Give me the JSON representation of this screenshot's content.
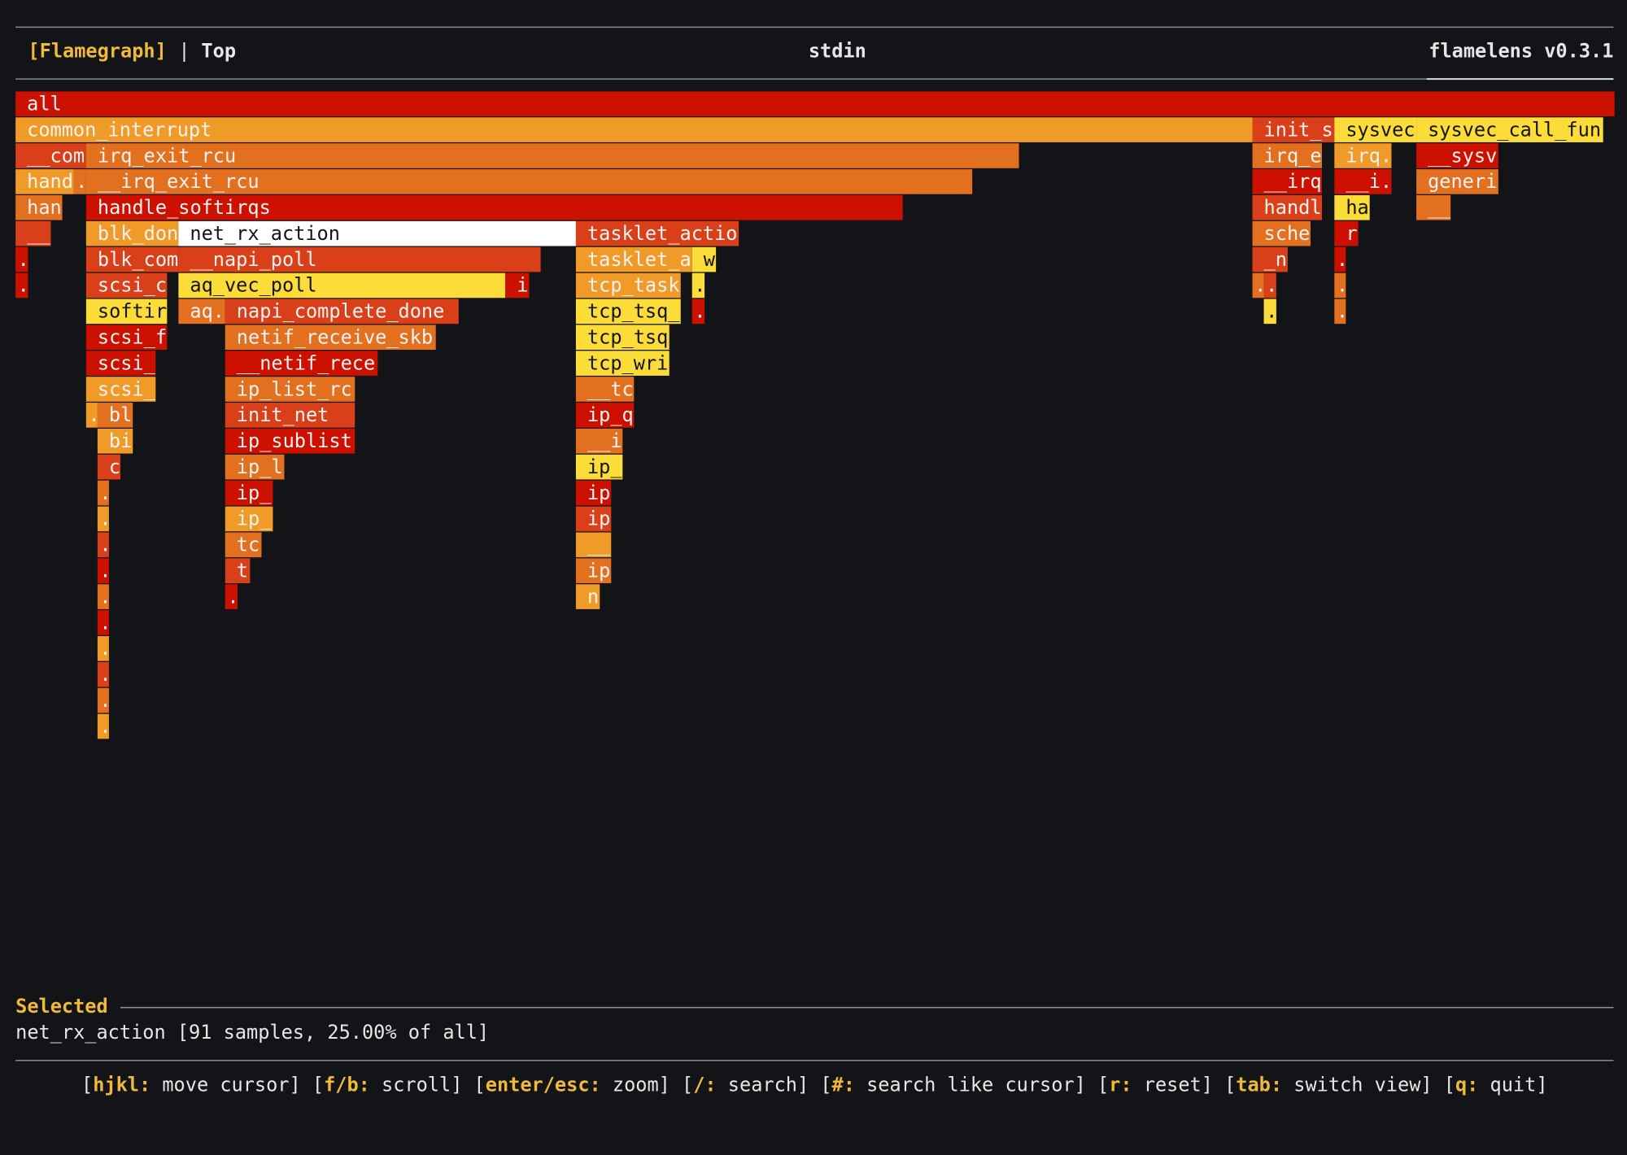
{
  "header": {
    "active_view": "[Flamegraph]",
    "separator": "|",
    "other_view": "Top",
    "source": "stdin",
    "app": "flamelens v0.3.1"
  },
  "flamegraph": {
    "frames": [
      {
        "label": "all"
      },
      {
        "label": "common_interrupt"
      },
      {
        "label": "init_s"
      },
      {
        "label": "sysvec"
      },
      {
        "label": "sysvec_call_fun"
      },
      {
        "label": "__com"
      },
      {
        "label": "irq_exit_rcu"
      },
      {
        "label": "irq_e"
      },
      {
        "label": "irq."
      },
      {
        "label": "__sysv"
      },
      {
        "label": "hand"
      },
      {
        "label": "."
      },
      {
        "label": "__irq_exit_rcu"
      },
      {
        "label": "__irq"
      },
      {
        "label": "__i."
      },
      {
        "label": "generi"
      },
      {
        "label": "han"
      },
      {
        "label": "handle_softirqs"
      },
      {
        "label": "handl"
      },
      {
        "label": "ha"
      },
      {
        "label": "__"
      },
      {
        "label": "__"
      },
      {
        "label": "blk_don"
      },
      {
        "label": "net_rx_action"
      },
      {
        "label": "tasklet_actio"
      },
      {
        "label": "sche"
      },
      {
        "label": "r"
      },
      {
        "label": "."
      },
      {
        "label": "blk_com"
      },
      {
        "label": "__napi_poll"
      },
      {
        "label": "tasklet_a"
      },
      {
        "label": "w"
      },
      {
        "label": "_n"
      },
      {
        "label": "."
      },
      {
        "label": "."
      },
      {
        "label": "scsi_c"
      },
      {
        "label": "aq_vec_poll"
      },
      {
        "label": "i"
      },
      {
        "label": "tcp_task"
      },
      {
        "label": "."
      },
      {
        "label": "."
      },
      {
        "label": "."
      },
      {
        "label": "."
      },
      {
        "label": "softir"
      },
      {
        "label": "aq."
      },
      {
        "label": "napi_complete_done"
      },
      {
        "label": "tcp_tsq_"
      },
      {
        "label": "."
      },
      {
        "label": "."
      },
      {
        "label": "."
      },
      {
        "label": "scsi_f"
      },
      {
        "label": "netif_receive_skb"
      },
      {
        "label": "tcp_tsq"
      },
      {
        "label": "scsi_"
      },
      {
        "label": "__netif_rece"
      },
      {
        "label": "tcp_wri"
      },
      {
        "label": "scsi_"
      },
      {
        "label": "ip_list_rc"
      },
      {
        "label": "__tc"
      },
      {
        "label": "."
      },
      {
        "label": "bl"
      },
      {
        "label": "init_net"
      },
      {
        "label": "ip_q"
      },
      {
        "label": "bi"
      },
      {
        "label": "ip_sublist"
      },
      {
        "label": "__i"
      },
      {
        "label": "c"
      },
      {
        "label": "ip_l"
      },
      {
        "label": "ip_"
      },
      {
        "label": "."
      },
      {
        "label": "ip_"
      },
      {
        "label": "ip"
      },
      {
        "label": "."
      },
      {
        "label": "ip_"
      },
      {
        "label": "ip"
      },
      {
        "label": "."
      },
      {
        "label": "tc"
      },
      {
        "label": "__"
      },
      {
        "label": "."
      },
      {
        "label": "t"
      },
      {
        "label": "ip"
      },
      {
        "label": "."
      },
      {
        "label": "."
      },
      {
        "label": "n"
      },
      {
        "label": "."
      },
      {
        "label": "."
      },
      {
        "label": "."
      },
      {
        "label": "."
      },
      {
        "label": "."
      }
    ]
  },
  "selected": {
    "title": "Selected",
    "text": "net_rx_action [91 samples, 25.00% of all]"
  },
  "footer": {
    "open": "[",
    "separator": ":",
    "close": "]",
    "items": [
      {
        "key": "hjkl",
        "action": "move cursor"
      },
      {
        "key": "f/b",
        "action": "scroll"
      },
      {
        "key": "enter/esc",
        "action": "zoom"
      },
      {
        "key": "/",
        "action": "search"
      },
      {
        "key": "#",
        "action": "search like cursor"
      },
      {
        "key": "r",
        "action": "reset"
      },
      {
        "key": "tab",
        "action": "switch view"
      },
      {
        "key": "q",
        "action": "quit"
      }
    ]
  }
}
